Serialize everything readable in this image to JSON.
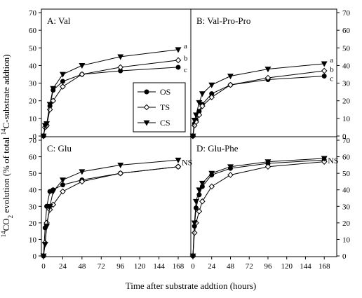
{
  "xlabel": "Time after substrate addtion (hours)",
  "ylabel_prefix": "14",
  "ylabel_co": "CO",
  "ylabel_sub2": "2",
  "ylabel_mid": " evolution (% of total ",
  "ylabel_sup2": "14",
  "ylabel_end": "C-substrate addtion)",
  "legend": [
    {
      "name": "OS",
      "marker": "circle",
      "fill": "#000000"
    },
    {
      "name": "TS",
      "marker": "diamond",
      "fill": "#ffffff"
    },
    {
      "name": "CS",
      "marker": "triangle-down",
      "fill": "#000000"
    }
  ],
  "chart_data": [
    {
      "type": "line",
      "panel": "A",
      "title": "A: Val",
      "x": [
        0,
        2,
        4,
        8,
        12,
        24,
        48,
        96,
        168
      ],
      "xlim": [
        0,
        175
      ],
      "ylim": [
        0,
        70
      ],
      "xticks": [
        0,
        24,
        48,
        72,
        96,
        120,
        144,
        168
      ],
      "yticks": [
        0,
        10,
        20,
        30,
        40,
        50,
        60,
        70
      ],
      "series": [
        {
          "name": "OS",
          "values": [
            0,
            5,
            6,
            17,
            26,
            31,
            35,
            37,
            39
          ]
        },
        {
          "name": "TS",
          "values": [
            0,
            5,
            6,
            15,
            20,
            28,
            35,
            39,
            43
          ]
        },
        {
          "name": "CS",
          "values": [
            0,
            6,
            7,
            18,
            27,
            35,
            40,
            45,
            49
          ]
        }
      ],
      "annotations": [
        "a",
        "b",
        "c"
      ]
    },
    {
      "type": "line",
      "panel": "B",
      "title": "B: Val-Pro-Pro",
      "x": [
        0,
        2,
        4,
        8,
        12,
        24,
        48,
        96,
        168
      ],
      "xlim": [
        0,
        175
      ],
      "ylim": [
        0,
        70
      ],
      "xticks": [
        0,
        24,
        48,
        72,
        96,
        120,
        144,
        168
      ],
      "yticks": [
        0,
        10,
        20,
        30,
        40,
        50,
        60,
        70
      ],
      "series": [
        {
          "name": "OS",
          "values": [
            0,
            7,
            9,
            14,
            18,
            24,
            29,
            32,
            34
          ]
        },
        {
          "name": "TS",
          "values": [
            0,
            6,
            8,
            12,
            17,
            22,
            29,
            33,
            37
          ]
        },
        {
          "name": "CS",
          "values": [
            0,
            9,
            12,
            19,
            24,
            29,
            34,
            38,
            41
          ]
        }
      ],
      "annotations": [
        "a",
        "b",
        "c"
      ]
    },
    {
      "type": "line",
      "panel": "C",
      "title": "C:  Glu",
      "x": [
        0,
        2,
        4,
        8,
        12,
        24,
        48,
        96,
        168
      ],
      "xlim": [
        0,
        175
      ],
      "ylim": [
        0,
        70
      ],
      "xticks": [
        0,
        24,
        48,
        72,
        96,
        120,
        144,
        168
      ],
      "yticks": [
        0,
        10,
        20,
        30,
        40,
        50,
        60,
        70
      ],
      "series": [
        {
          "name": "OS",
          "values": [
            0,
            17,
            30,
            39,
            40,
            43,
            46,
            50,
            54
          ]
        },
        {
          "name": "TS",
          "values": [
            0,
            8,
            20,
            28,
            31,
            39,
            45,
            50,
            54
          ]
        },
        {
          "name": "CS",
          "values": [
            0,
            7,
            18,
            30,
            39,
            46,
            51,
            55,
            58
          ]
        }
      ],
      "annotations": [
        "NS"
      ]
    },
    {
      "type": "line",
      "panel": "D",
      "title": "D:  Glu-Phe",
      "x": [
        0,
        2,
        4,
        8,
        12,
        24,
        48,
        96,
        168
      ],
      "xlim": [
        0,
        175
      ],
      "ylim": [
        0,
        70
      ],
      "xticks": [
        0,
        24,
        48,
        72,
        96,
        120,
        144,
        168
      ],
      "yticks": [
        0,
        10,
        20,
        30,
        40,
        50,
        60,
        70
      ],
      "series": [
        {
          "name": "OS",
          "values": [
            0,
            18,
            29,
            37,
            42,
            49,
            53,
            56,
            58
          ]
        },
        {
          "name": "TS",
          "values": [
            0,
            14,
            20,
            27,
            33,
            42,
            49,
            54,
            57
          ]
        },
        {
          "name": "CS",
          "values": [
            0,
            20,
            33,
            40,
            44,
            50,
            54,
            57,
            59
          ]
        }
      ],
      "annotations": [
        "NS"
      ]
    }
  ]
}
